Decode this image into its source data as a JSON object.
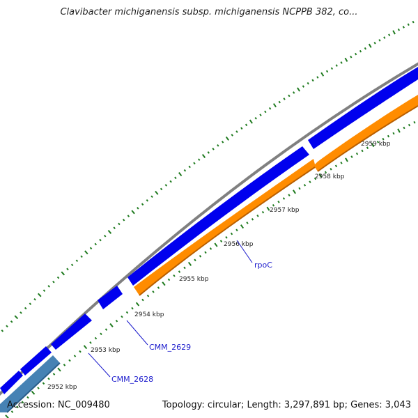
{
  "title": "Clavibacter michiganensis subsp. michiganensis NCPPB 382, co...",
  "footer": {
    "accession": "Accession: NC_009480",
    "summary": "Topology: circular; Length: 3,297,891 bp; Genes: 3,043"
  },
  "colors": {
    "backbone": "#808080",
    "cds_forward": "#0000ee",
    "gene_forward": "#ff8c00",
    "rna": "#4682b4",
    "tick": "#1e7a1e",
    "label_text": "#1a1acc"
  },
  "ticks": [
    {
      "label": "2952 kbp"
    },
    {
      "label": "2953 kbp"
    },
    {
      "label": "2954 kbp"
    },
    {
      "label": "2955 kbp"
    },
    {
      "label": "2956 kbp"
    },
    {
      "label": "2957 kbp"
    },
    {
      "label": "2958 kbp"
    },
    {
      "label": "2959 kbp"
    }
  ],
  "gene_labels": [
    {
      "label": "CMM_2628"
    },
    {
      "label": "CMM_2629"
    },
    {
      "label": "rpoC"
    }
  ]
}
